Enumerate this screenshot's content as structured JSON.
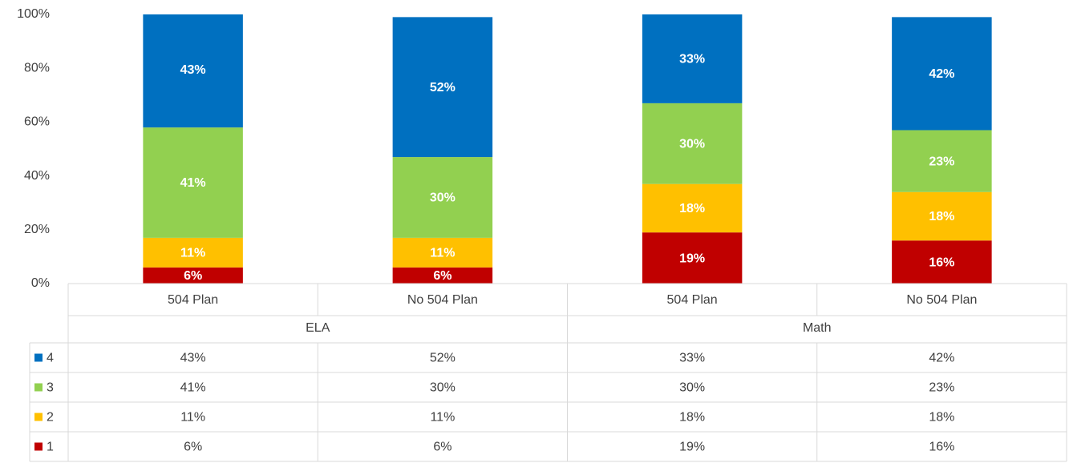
{
  "chart_data": {
    "type": "bar",
    "stacked": true,
    "categories": [
      "504 Plan",
      "No 504 Plan",
      "504 Plan",
      "No 504 Plan"
    ],
    "category_groups": [
      "ELA",
      "Math"
    ],
    "series": [
      {
        "name": "4",
        "color": "#0070c0",
        "values": [
          43,
          52,
          33,
          42
        ],
        "value_labels": [
          "43%",
          "52%",
          "33%",
          "42%"
        ]
      },
      {
        "name": "3",
        "color": "#92d050",
        "values": [
          41,
          30,
          30,
          23
        ],
        "value_labels": [
          "41%",
          "30%",
          "30%",
          "23%"
        ]
      },
      {
        "name": "2",
        "color": "#ffc000",
        "values": [
          11,
          11,
          18,
          18
        ],
        "value_labels": [
          "11%",
          "11%",
          "18%",
          "18%"
        ]
      },
      {
        "name": "1",
        "color": "#c00000",
        "values": [
          6,
          6,
          19,
          16
        ],
        "value_labels": [
          "6%",
          "6%",
          "19%",
          "16%"
        ]
      }
    ],
    "ylim": [
      0,
      100
    ],
    "yticks": [
      {
        "value": 0,
        "label": "0%"
      },
      {
        "value": 20,
        "label": "20%"
      },
      {
        "value": 40,
        "label": "40%"
      },
      {
        "value": 60,
        "label": "60%"
      },
      {
        "value": 80,
        "label": "80%"
      },
      {
        "value": 100,
        "label": "100%"
      }
    ],
    "grid": false,
    "data_table": true
  }
}
